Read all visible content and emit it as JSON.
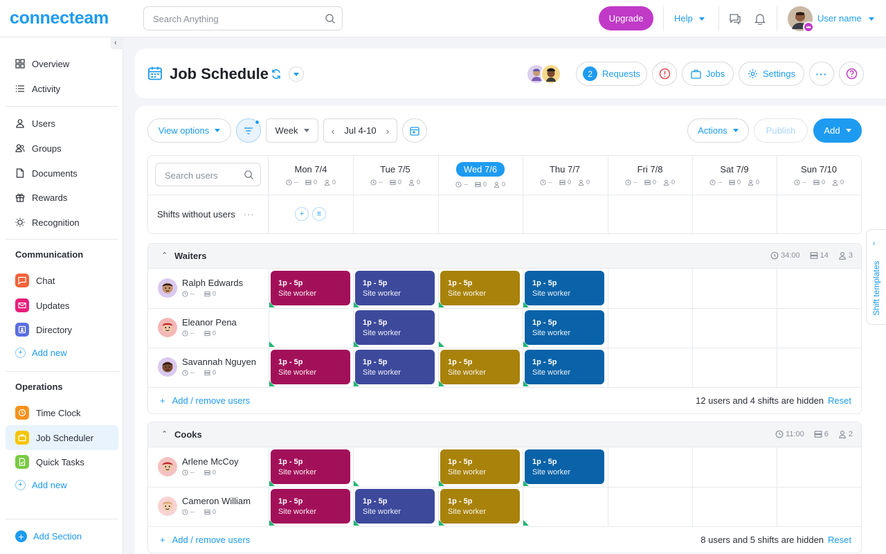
{
  "app": {
    "logo": "connecteam"
  },
  "topbar": {
    "search_placeholder": "Search Anything",
    "upgrade": "Upgrade",
    "help": "Help",
    "user_name": "User name"
  },
  "sidebar": {
    "items": [
      {
        "label": "Overview",
        "icon": "grid-icon"
      },
      {
        "label": "Activity",
        "icon": "list-icon"
      },
      {
        "label": "Users",
        "icon": "user-icon"
      },
      {
        "label": "Groups",
        "icon": "users-icon"
      },
      {
        "label": "Documents",
        "icon": "document-icon"
      },
      {
        "label": "Rewards",
        "icon": "gift-icon"
      },
      {
        "label": "Recognition",
        "icon": "badge-icon"
      }
    ],
    "communication": {
      "title": "Communication",
      "items": [
        {
          "label": "Chat",
          "color": "#f4623a"
        },
        {
          "label": "Updates",
          "color": "#e91e7a"
        },
        {
          "label": "Directory",
          "color": "#5b6ee1"
        }
      ],
      "add_new": "Add new"
    },
    "operations": {
      "title": "Operations",
      "items": [
        {
          "label": "Time Clock",
          "color": "#f7931e"
        },
        {
          "label": "Job Scheduler",
          "color": "#f5c400"
        },
        {
          "label": "Quick Tasks",
          "color": "#7ac943"
        }
      ],
      "add_new": "Add new"
    },
    "add_section": "Add Section"
  },
  "header": {
    "title": "Job Schedule",
    "requests_count": "2",
    "requests": "Requests",
    "jobs": "Jobs",
    "settings": "Settings"
  },
  "toolbar": {
    "view_options": "View options",
    "week": "Week",
    "date_range": "Jul 4-10",
    "actions": "Actions",
    "publish": "Publish",
    "add": "Add"
  },
  "grid": {
    "search_users_placeholder": "Search users",
    "days": [
      {
        "label": "Mon 7/4",
        "today": false
      },
      {
        "label": "Tue 7/5",
        "today": false
      },
      {
        "label": "Wed 7/6",
        "today": true
      },
      {
        "label": "Thu 7/7",
        "today": false
      },
      {
        "label": "Fri 7/8",
        "today": false
      },
      {
        "label": "Sat 7/9",
        "today": false
      },
      {
        "label": "Sun 7/10",
        "today": false
      }
    ],
    "day_stats": {
      "hours": "--",
      "shifts": "0",
      "users": "0"
    },
    "shifts_without_users": "Shifts without users"
  },
  "shift_colors": {
    "mon": "#a3105a",
    "tue": "#3d4a9c",
    "wed": "#a8820a",
    "thu": "#0a62a8"
  },
  "groups": [
    {
      "name": "Waiters",
      "stats": {
        "hours": "34:00",
        "shifts": "14",
        "users": "3"
      },
      "users": [
        {
          "name": "Ralph Edwards",
          "hours": "--",
          "shifts": "0",
          "days": [
            true,
            true,
            true,
            true
          ]
        },
        {
          "name": "Eleanor Pena",
          "hours": "--",
          "shifts": "0",
          "days": [
            false,
            true,
            false,
            true
          ]
        },
        {
          "name": "Savannah Nguyen",
          "hours": "--",
          "shifts": "0",
          "days": [
            true,
            true,
            true,
            true
          ]
        }
      ],
      "add_remove": "Add / remove users",
      "hidden": "12 users and 4 shifts are hidden",
      "reset": "Reset"
    },
    {
      "name": "Cooks",
      "stats": {
        "hours": "11:00",
        "shifts": "6",
        "users": "2"
      },
      "users": [
        {
          "name": "Arlene McCoy",
          "hours": "--",
          "shifts": "0",
          "days": [
            true,
            false,
            true,
            true
          ]
        },
        {
          "name": "Cameron William",
          "hours": "--",
          "shifts": "0",
          "days": [
            true,
            true,
            true,
            false
          ]
        }
      ],
      "add_remove": "Add / remove users",
      "hidden": "8 users and 5 shifts are hidden",
      "reset": "Reset"
    }
  ],
  "shift": {
    "time": "1p - 5p",
    "role": "Site worker"
  },
  "templates_tab": "Shift templates"
}
